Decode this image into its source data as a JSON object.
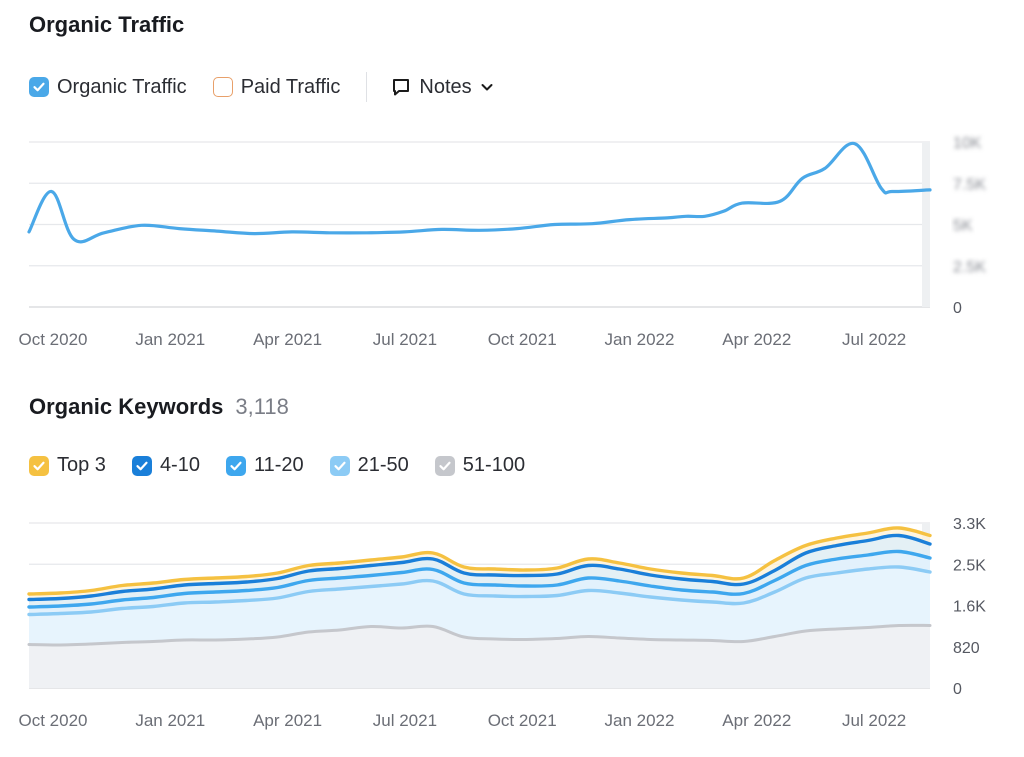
{
  "traffic": {
    "title": "Organic Traffic",
    "legend": {
      "organic_label": "Organic Traffic",
      "paid_label": "Paid Traffic",
      "notes_label": "Notes"
    },
    "colors": {
      "organic": "#4aa8e8",
      "paid_border": "#e8a06a"
    }
  },
  "keywords": {
    "title": "Organic Keywords",
    "count": "3,118",
    "legend": [
      {
        "label": "Top 3",
        "color": "#f5c141"
      },
      {
        "label": "4-10",
        "color": "#1a7fd9"
      },
      {
        "label": "11-20",
        "color": "#3ea7ee"
      },
      {
        "label": "21-50",
        "color": "#8ccbf5"
      },
      {
        "label": "51-100",
        "color": "#c5c7cc"
      }
    ]
  },
  "chart_data": [
    {
      "type": "line",
      "title": "Organic Traffic",
      "x_labels": [
        "Oct 2020",
        "Jan 2021",
        "Apr 2021",
        "Jul 2021",
        "Oct 2021",
        "Jan 2022",
        "Apr 2022",
        "Jul 2022"
      ],
      "y_ticks": [
        "10K",
        "7.5K",
        "5K",
        "2.5K",
        "0"
      ],
      "ylim": [
        0,
        10000
      ],
      "series": [
        {
          "name": "Organic Traffic",
          "color": "#4aa8e8",
          "points": [
            [
              0,
              4550
            ],
            [
              0.6,
              7000
            ],
            [
              1.2,
              4100
            ],
            [
              2,
              4500
            ],
            [
              3,
              4950
            ],
            [
              4,
              4750
            ],
            [
              5,
              4600
            ],
            [
              6,
              4450
            ],
            [
              7,
              4550
            ],
            [
              8,
              4500
            ],
            [
              9,
              4500
            ],
            [
              10,
              4550
            ],
            [
              11,
              4700
            ],
            [
              12,
              4650
            ],
            [
              13,
              4750
            ],
            [
              14,
              5000
            ],
            [
              15,
              5050
            ],
            [
              16,
              5300
            ],
            [
              17,
              5400
            ],
            [
              17.5,
              5500
            ],
            [
              18,
              5500
            ],
            [
              18.5,
              5800
            ],
            [
              19,
              6300
            ],
            [
              20,
              6400
            ],
            [
              20.6,
              7800
            ],
            [
              21.2,
              8400
            ],
            [
              22,
              9900
            ],
            [
              22.7,
              7200
            ],
            [
              23,
              7000
            ],
            [
              24,
              7100
            ]
          ]
        }
      ]
    },
    {
      "type": "area",
      "title": "Organic Keywords",
      "x_labels": [
        "Oct 2020",
        "Jan 2021",
        "Apr 2021",
        "Jul 2021",
        "Oct 2021",
        "Jan 2022",
        "Apr 2022",
        "Jul 2022"
      ],
      "y_ticks": [
        "3.3K",
        "2.5K",
        "1.6K",
        "820",
        "0"
      ],
      "ylim": [
        0,
        3300
      ],
      "months": 25,
      "series": [
        {
          "name": "Top 3",
          "color": "#f5c141",
          "values": [
            1880,
            1900,
            1950,
            2050,
            2100,
            2170,
            2200,
            2230,
            2300,
            2450,
            2500,
            2560,
            2620,
            2700,
            2420,
            2380,
            2360,
            2400,
            2580,
            2500,
            2380,
            2300,
            2250,
            2200,
            2550,
            2850,
            3000,
            3100,
            3200,
            3050
          ]
        },
        {
          "name": "4-10",
          "color": "#1a7fd9",
          "values": [
            1770,
            1790,
            1840,
            1930,
            1980,
            2060,
            2090,
            2120,
            2190,
            2340,
            2390,
            2450,
            2510,
            2580,
            2300,
            2260,
            2250,
            2280,
            2450,
            2380,
            2260,
            2180,
            2130,
            2080,
            2350,
            2700,
            2850,
            2950,
            3050,
            2880
          ]
        },
        {
          "name": "11-20",
          "color": "#3ea7ee",
          "values": [
            1620,
            1640,
            1680,
            1760,
            1810,
            1890,
            1920,
            1950,
            2010,
            2150,
            2200,
            2250,
            2310,
            2370,
            2100,
            2060,
            2040,
            2060,
            2200,
            2140,
            2040,
            1960,
            1920,
            1890,
            2150,
            2450,
            2580,
            2660,
            2730,
            2600
          ]
        },
        {
          "name": "21-50",
          "color": "#8ccbf5",
          "values": [
            1470,
            1490,
            1520,
            1590,
            1630,
            1700,
            1720,
            1750,
            1800,
            1930,
            1980,
            2030,
            2080,
            2140,
            1880,
            1840,
            1830,
            1850,
            1950,
            1900,
            1820,
            1760,
            1720,
            1700,
            1920,
            2200,
            2300,
            2380,
            2420,
            2320
          ]
        },
        {
          "name": "51-100",
          "color": "#c5c7cc",
          "values": [
            870,
            860,
            880,
            910,
            930,
            960,
            960,
            980,
            1020,
            1120,
            1160,
            1230,
            1200,
            1230,
            1020,
            980,
            970,
            990,
            1030,
            1000,
            970,
            960,
            950,
            930,
            1030,
            1140,
            1180,
            1210,
            1250,
            1250
          ]
        }
      ]
    }
  ]
}
